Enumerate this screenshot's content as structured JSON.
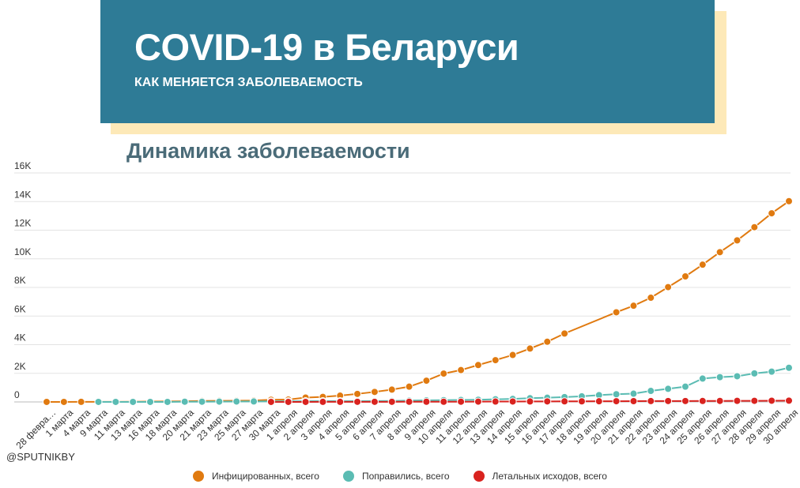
{
  "header": {
    "title": "COVID-19 в Беларуси",
    "subtitle": "КАК МЕНЯЕТСЯ ЗАБОЛЕВАЕМОСТЬ"
  },
  "credit": "@SPUTNIKBY",
  "colors": {
    "banner": "#2e7b96",
    "banner_shadow": "#fde9b8",
    "infected": "#e07a10",
    "recovered": "#5bbcb3",
    "deaths": "#d9231f"
  },
  "chart_data": {
    "type": "line",
    "title": "Динамика заболеваемости",
    "xlabel": "",
    "ylabel": "",
    "ylim": [
      0,
      16000
    ],
    "yticks": [
      "0",
      "2K",
      "4K",
      "6K",
      "8K",
      "10K",
      "12K",
      "14K",
      "16K"
    ],
    "grid": true,
    "legend_position": "bottom",
    "categories": [
      "28 февра…",
      "1 марта",
      "4 марта",
      "9 марта",
      "11 марта",
      "13 марта",
      "16 марта",
      "18 марта",
      "20 марта",
      "21 марта",
      "23 марта",
      "25 марта",
      "27 марта",
      "30 марта",
      "1 апреля",
      "2 апреля",
      "3 апреля",
      "4 апреля",
      "5 апреля",
      "6 апреля",
      "7 апреля",
      "8 апреля",
      "9 апреля",
      "10 апреля",
      "11 апреля",
      "12 апреля",
      "13 апреля",
      "14 апреля",
      "15 апреля",
      "16 апреля",
      "17 апреля",
      "18 апреля",
      "19 апреля",
      "20 апреля",
      "21 апреля",
      "22 апреля",
      "23 апреля",
      "24 апреля",
      "25 апреля",
      "26 апреля",
      "27 апреля",
      "28 апреля",
      "29 апреля",
      "30 апреля"
    ],
    "series": [
      {
        "name": "Инфицированных, всего",
        "color": "#e07a10",
        "values": [
          1,
          1,
          6,
          6,
          9,
          12,
          27,
          36,
          51,
          69,
          76,
          86,
          94,
          152,
          163,
          304,
          351,
          440,
          562,
          700,
          861,
          1066,
          1486,
          1981,
          2226,
          2578,
          2919,
          3281,
          3728,
          4204,
          4779,
          null,
          null,
          6264,
          6723,
          7281,
          8022,
          8773,
          9590,
          10463,
          11289,
          12208,
          13181,
          14027
        ]
      },
      {
        "name": "Поправились, всего",
        "color": "#5bbcb3",
        "values": [
          null,
          null,
          null,
          3,
          3,
          3,
          3,
          3,
          15,
          15,
          22,
          29,
          32,
          39,
          47,
          53,
          53,
          53,
          57,
          59,
          70,
          93,
          109,
          125,
          136,
          155,
          185,
          211,
          259,
          294,
          341,
          392,
          478,
          538,
          577,
          771,
          916,
          1069,
          1633,
          1731,
          1795,
          1993,
          2117,
          2386
        ]
      },
      {
        "name": "Летальных исходов, всего",
        "color": "#d9231f",
        "values": [
          null,
          null,
          null,
          null,
          null,
          null,
          null,
          null,
          null,
          null,
          null,
          null,
          null,
          2,
          2,
          3,
          4,
          4,
          8,
          8,
          9,
          13,
          13,
          13,
          16,
          23,
          26,
          29,
          33,
          36,
          40,
          42,
          45,
          51,
          55,
          60,
          63,
          63,
          67,
          72,
          75,
          79,
          84,
          89
        ]
      }
    ]
  }
}
